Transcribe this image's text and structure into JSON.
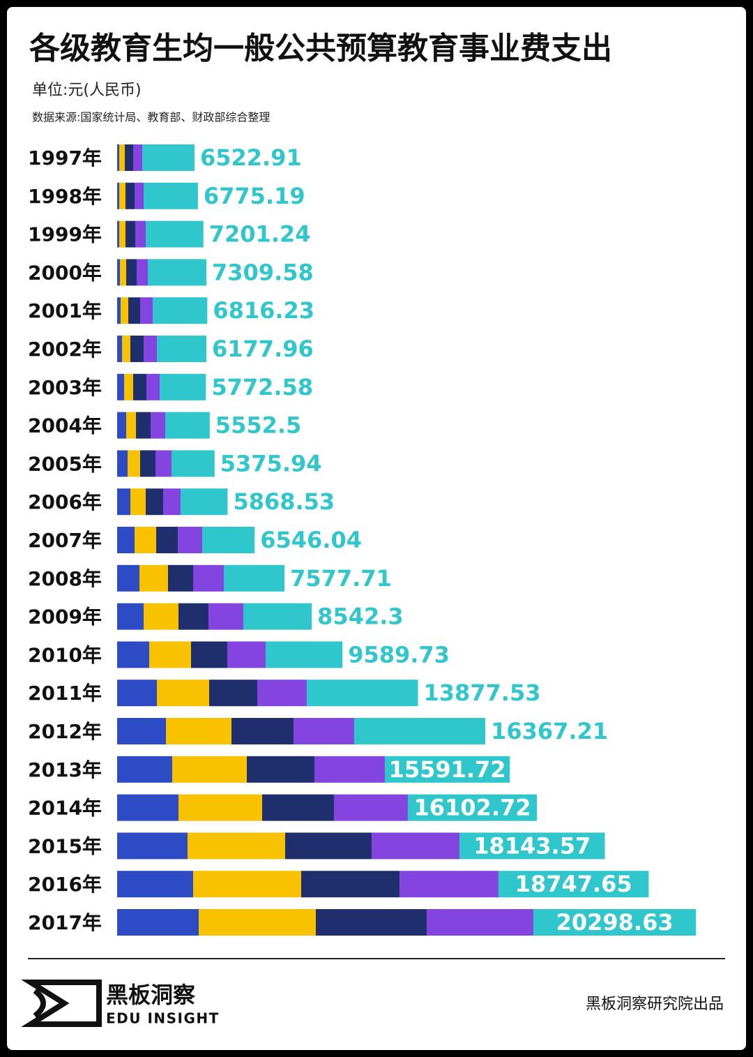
{
  "chart_data": {
    "type": "stacked_barh",
    "title": "各级教育生均一般公共预算教育事业费支出",
    "subtitle": "单位:元(人民币)",
    "source": "数据来源:国家统计局、教育部、财政部综合整理",
    "brand_name": "黑板洞察",
    "brand_en": "EDU INSIGHT",
    "footer": "黑板洞察研究院出品",
    "categories": [
      "1997年",
      "1998年",
      "1999年",
      "2000年",
      "2001年",
      "2002年",
      "2003年",
      "2004年",
      "2005年",
      "2006年",
      "2007年",
      "2008年",
      "2009年",
      "2010年",
      "2011年",
      "2012年",
      "2013年",
      "2014年",
      "2015年",
      "2016年",
      "2017年"
    ],
    "xlim": [
      0,
      75000
    ],
    "series": [
      {
        "color": "#2e4bc6",
        "values": [
          261,
          261,
          261,
          348,
          435,
          609,
          870,
          1131,
          1305,
          1653,
          2175,
          2784,
          3306,
          4002,
          4959,
          6090,
          6873,
          7656,
          8787,
          9483,
          10179
        ]
      },
      {
        "color": "#f8c200",
        "values": [
          696,
          783,
          783,
          783,
          957,
          1044,
          1131,
          1218,
          1566,
          1914,
          2697,
          3567,
          4350,
          5220,
          6525,
          8178,
          9309,
          10440,
          12180,
          13485,
          14616
        ]
      },
      {
        "color": "#1f2f6e",
        "values": [
          1044,
          1131,
          1218,
          1305,
          1479,
          1653,
          1653,
          1827,
          1914,
          2175,
          2697,
          3132,
          3741,
          4524,
          6003,
          7743,
          8439,
          8961,
          10788,
          12267,
          13833
        ]
      },
      {
        "color": "#8344e0",
        "values": [
          1131,
          1131,
          1305,
          1392,
          1566,
          1653,
          1653,
          1827,
          2001,
          2175,
          3045,
          3828,
          4350,
          4785,
          6177,
          7569,
          8787,
          9222,
          10962,
          12354,
          13311
        ]
      },
      {
        "color": "#2fc6cc",
        "values": [
          6522.91,
          6775.19,
          7201.24,
          7309.58,
          6816.23,
          6177.96,
          5772.58,
          5552.5,
          5375.94,
          5868.53,
          6546.04,
          7577.71,
          8542.3,
          9589.73,
          13877.53,
          16367.21,
          15591.72,
          16102.72,
          18143.57,
          18747.65,
          20298.63
        ]
      }
    ]
  }
}
